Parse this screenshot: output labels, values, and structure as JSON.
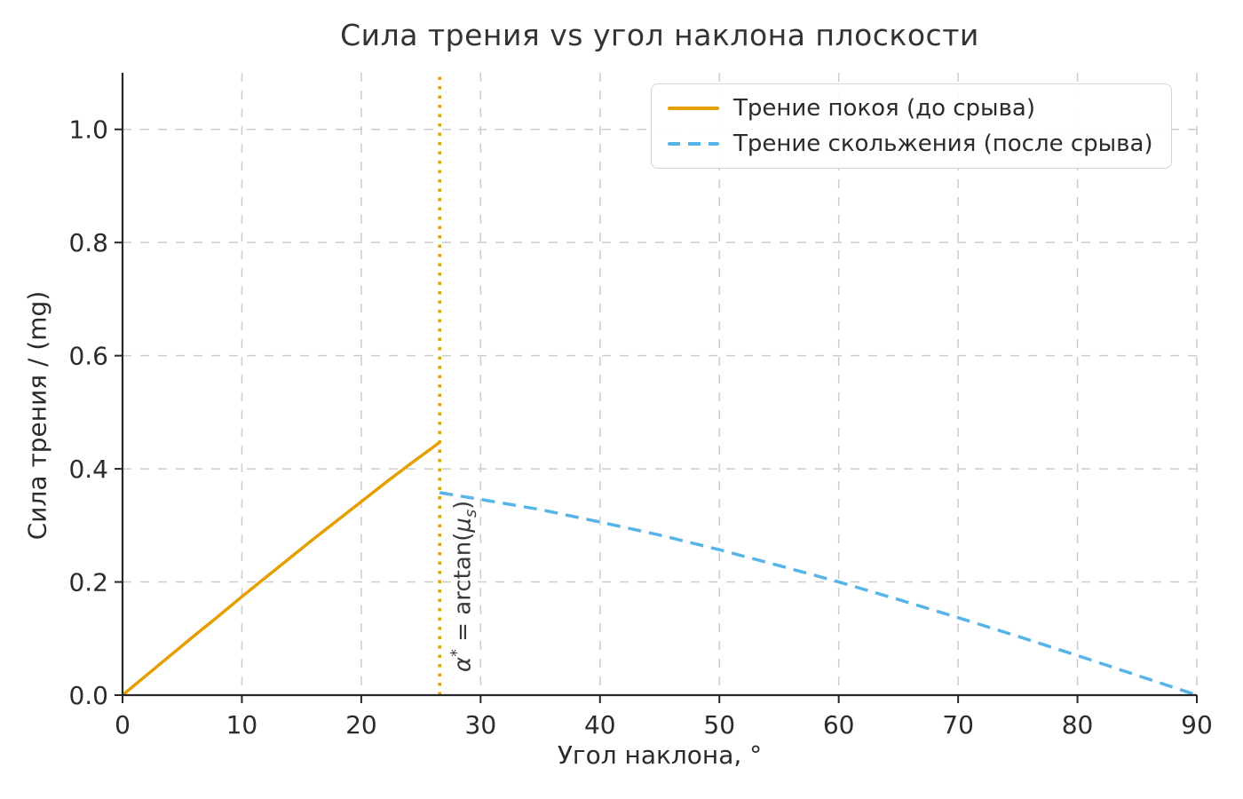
{
  "title": "Сила трения vs угол наклона плоскости",
  "axes": {
    "xlabel": "Угол наклона, °",
    "ylabel": "Сила трения / (mg)"
  },
  "legend": {
    "items": [
      {
        "label": "Трение покоя (до срыва)"
      },
      {
        "label": "Трение скольжения (после срыва)"
      }
    ]
  },
  "annotation": {
    "alpha": "α",
    "star": "*",
    "eq_fn": " = arctan(",
    "mu": "μ",
    "sub": "s",
    "close": ")"
  },
  "colors": {
    "static_line": "#E69F00",
    "kinetic_line": "#56B4E9",
    "vline": "#E69F00",
    "grid": "#cccccc",
    "spine": "#262626",
    "tick_text": "#2b2b2b"
  },
  "chart_data": {
    "type": "line",
    "title": "Сила трения vs угол наклона плоскости",
    "xlabel": "Угол наклона, °",
    "ylabel": "Сила трения / (mg)",
    "xlim": [
      0,
      90
    ],
    "ylim": [
      0,
      1.1
    ],
    "grid": true,
    "legend_position": "upper right",
    "xticks": {
      "values": [
        0,
        10,
        20,
        30,
        40,
        50,
        60,
        70,
        80,
        90
      ],
      "labels": [
        "0",
        "10",
        "20",
        "30",
        "40",
        "50",
        "60",
        "70",
        "80",
        "90"
      ]
    },
    "yticks": {
      "values": [
        0.0,
        0.2,
        0.4,
        0.6,
        0.8,
        1.0
      ],
      "labels": [
        "0.0",
        "0.2",
        "0.4",
        "0.6",
        "0.8",
        "1.0"
      ]
    },
    "vline": {
      "x": 26.57,
      "style": "dotted",
      "color": "#E69F00",
      "label": "α* = arctan(μs)"
    },
    "series": [
      {
        "name": "Трение покоя (до срыва)",
        "color": "#E69F00",
        "style": "solid",
        "x": [
          0,
          2,
          4,
          6,
          8,
          10,
          12,
          14,
          16,
          18,
          20,
          22,
          24,
          26,
          26.57
        ],
        "y": [
          0.0,
          0.035,
          0.07,
          0.105,
          0.139,
          0.174,
          0.208,
          0.242,
          0.276,
          0.309,
          0.342,
          0.375,
          0.407,
          0.438,
          0.447
        ]
      },
      {
        "name": "Трение скольжения (после срыва)",
        "color": "#56B4E9",
        "style": "dashed",
        "x": [
          26.57,
          30,
          35,
          40,
          45,
          50,
          55,
          60,
          65,
          70,
          75,
          80,
          85,
          90
        ],
        "y": [
          0.358,
          0.346,
          0.328,
          0.306,
          0.283,
          0.257,
          0.229,
          0.2,
          0.169,
          0.137,
          0.104,
          0.07,
          0.035,
          0.0
        ]
      }
    ]
  }
}
